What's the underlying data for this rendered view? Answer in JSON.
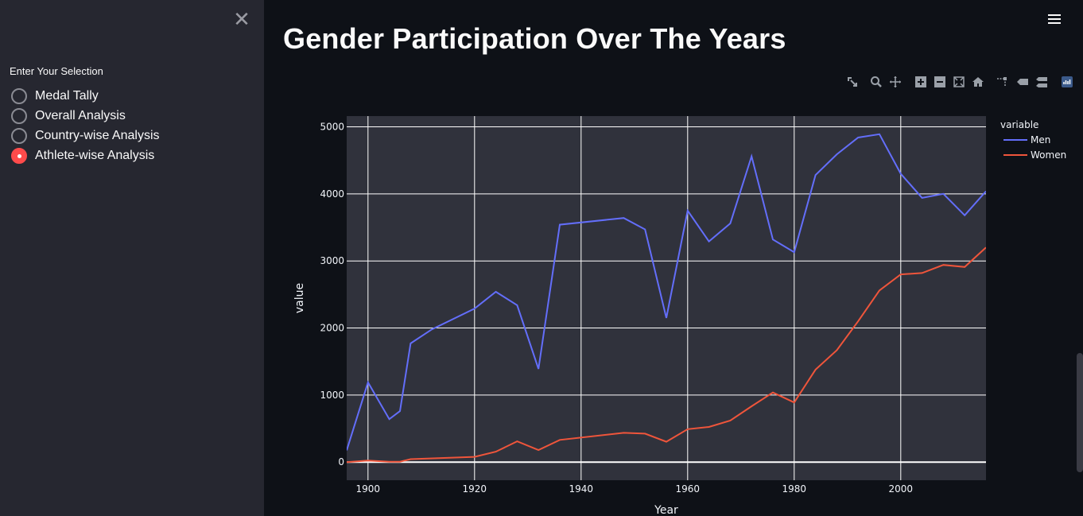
{
  "sidebar": {
    "close_symbol": "✕",
    "selection_label": "Enter Your Selection",
    "options": [
      {
        "label": "Medal Tally",
        "selected": false
      },
      {
        "label": "Overall Analysis",
        "selected": false
      },
      {
        "label": "Country-wise Analysis",
        "selected": false
      },
      {
        "label": "Athlete-wise Analysis",
        "selected": true
      }
    ],
    "accent_color": "#ff4b4b"
  },
  "main": {
    "title": "Gender Participation Over The Years",
    "menu_icon": "hamburger-icon"
  },
  "modebar": {
    "icons": [
      "download-plot-icon",
      "zoom-icon",
      "pan-icon",
      "zoom-in-icon",
      "zoom-out-icon",
      "autoscale-icon",
      "reset-axes-icon",
      "spike-lines-icon",
      "hover-closest-icon",
      "hover-compare-icon",
      "plotly-logo-icon"
    ]
  },
  "chart_data": {
    "type": "line",
    "xlabel": "Year",
    "ylabel": "value",
    "xlim": [
      1896,
      2016
    ],
    "ylim": [
      -270,
      5160
    ],
    "x_ticks": [
      1900,
      1920,
      1940,
      1960,
      1980,
      2000
    ],
    "y_ticks": [
      0,
      1000,
      2000,
      3000,
      4000,
      5000
    ],
    "grid": true,
    "legend_title": "variable",
    "legend_position": "right",
    "series": [
      {
        "name": "Men",
        "color": "#636efa",
        "points": [
          [
            1896,
            176
          ],
          [
            1900,
            1190
          ],
          [
            1904,
            640
          ],
          [
            1906,
            760
          ],
          [
            1908,
            1770
          ],
          [
            1912,
            1980
          ],
          [
            1920,
            2290
          ],
          [
            1924,
            2540
          ],
          [
            1928,
            2340
          ],
          [
            1932,
            1390
          ],
          [
            1936,
            3540
          ],
          [
            1948,
            3640
          ],
          [
            1952,
            3470
          ],
          [
            1956,
            2150
          ],
          [
            1960,
            3750
          ],
          [
            1964,
            3290
          ],
          [
            1968,
            3560
          ],
          [
            1972,
            4560
          ],
          [
            1976,
            3320
          ],
          [
            1980,
            3130
          ],
          [
            1984,
            4280
          ],
          [
            1988,
            4590
          ],
          [
            1992,
            4840
          ],
          [
            1996,
            4890
          ],
          [
            2000,
            4300
          ],
          [
            2004,
            3940
          ],
          [
            2008,
            4000
          ],
          [
            2012,
            3680
          ],
          [
            2016,
            4040
          ]
        ]
      },
      {
        "name": "Women",
        "color": "#ef553b",
        "points": [
          [
            1896,
            0
          ],
          [
            1900,
            23
          ],
          [
            1904,
            6
          ],
          [
            1906,
            6
          ],
          [
            1908,
            44
          ],
          [
            1920,
            78
          ],
          [
            1924,
            156
          ],
          [
            1928,
            310
          ],
          [
            1932,
            181
          ],
          [
            1936,
            331
          ],
          [
            1948,
            437
          ],
          [
            1952,
            425
          ],
          [
            1956,
            304
          ],
          [
            1960,
            491
          ],
          [
            1964,
            524
          ],
          [
            1968,
            619
          ],
          [
            1972,
            833
          ],
          [
            1976,
            1038
          ],
          [
            1980,
            890
          ],
          [
            1984,
            1379
          ],
          [
            1988,
            1669
          ],
          [
            1992,
            2100
          ],
          [
            1996,
            2560
          ],
          [
            2000,
            2800
          ],
          [
            2004,
            2820
          ],
          [
            2008,
            2940
          ],
          [
            2012,
            2910
          ],
          [
            2016,
            3200
          ]
        ]
      }
    ]
  }
}
